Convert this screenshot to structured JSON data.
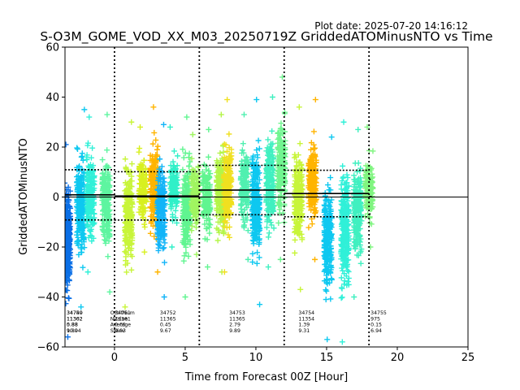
{
  "header": {
    "plot_date": "Plot date: 2025-07-20 14:16:12",
    "title": "S-O3M_GOME_VOD_XX_M03_20250719Z GriddedATOMinusNTO vs Time"
  },
  "chart_data": {
    "type": "scatter",
    "title": "S-O3M_GOME_VOD_XX_M03_20250719Z GriddedATOMinusNTO vs Time",
    "xlabel": "Time from Forecast 00Z [Hour]",
    "ylabel": "GriddedATOMinusNTO",
    "xlim": [
      -3.5,
      25
    ],
    "ylim": [
      -60,
      60
    ],
    "xticks": [
      0,
      5,
      10,
      15,
      20,
      25
    ],
    "yticks": [
      -60,
      -40,
      -20,
      0,
      20,
      40,
      60
    ],
    "grid": false,
    "marker": "+",
    "zero_line": 0,
    "window_boundaries": [
      0,
      6,
      12,
      18
    ],
    "orbit_bands": [
      {
        "x": -3.4,
        "min": -56,
        "max": 21,
        "color": "#0a6fe6",
        "density": 2
      },
      {
        "x": -2.4,
        "min": -44,
        "max": 35,
        "color": "#0ec8f0"
      },
      {
        "x": -1.7,
        "min": -30,
        "max": 32,
        "color": "#30f0d8"
      },
      {
        "x": -0.6,
        "min": -38,
        "max": 33,
        "color": "#5ef5a0"
      },
      {
        "x": 1.0,
        "min": -44,
        "max": 30,
        "color": "#c8f53a"
      },
      {
        "x": 2.0,
        "min": -22,
        "max": 28,
        "color": "#d8f020"
      },
      {
        "x": 2.8,
        "min": -30,
        "max": 36,
        "color": "#ffb400"
      },
      {
        "x": 3.3,
        "min": -40,
        "max": 29,
        "color": "#12b4f8"
      },
      {
        "x": 4.2,
        "min": -20,
        "max": 28,
        "color": "#30f0c8"
      },
      {
        "x": 5.1,
        "min": -40,
        "max": 32,
        "color": "#60f590"
      },
      {
        "x": 5.7,
        "min": -23,
        "max": 25,
        "color": "#a0f560"
      },
      {
        "x": 6.5,
        "min": -28,
        "max": 27,
        "color": "#60f590"
      },
      {
        "x": 7.5,
        "min": -30,
        "max": 33,
        "color": "#b4f548"
      },
      {
        "x": 8.0,
        "min": -30,
        "max": 39,
        "color": "#f0e020"
      },
      {
        "x": 9.2,
        "min": -25,
        "max": 33,
        "color": "#50f0b0"
      },
      {
        "x": 10.0,
        "min": -43,
        "max": 39,
        "color": "#0ec8f0"
      },
      {
        "x": 11.0,
        "min": -28,
        "max": 40,
        "color": "#40f0c0"
      },
      {
        "x": 11.8,
        "min": -25,
        "max": 48,
        "color": "#70f590"
      },
      {
        "x": 13.0,
        "min": -37,
        "max": 36,
        "color": "#c8f53a"
      },
      {
        "x": 14.0,
        "min": -25,
        "max": 39,
        "color": "#ffb400"
      },
      {
        "x": 15.1,
        "min": -57,
        "max": 24,
        "color": "#0ec8f0"
      },
      {
        "x": 16.3,
        "min": -58,
        "max": 30,
        "color": "#30f0d8"
      },
      {
        "x": 17.2,
        "min": -40,
        "max": 27,
        "color": "#40f0c0"
      },
      {
        "x": 18.0,
        "min": -20,
        "max": 28,
        "color": "#80f580"
      }
    ],
    "window_stats": [
      {
        "x_from": -3.5,
        "x_to": 0,
        "mean": 0.88,
        "stdev": 10.04
      },
      {
        "x_from": 0,
        "x_to": 6,
        "mean": 0.45,
        "stdev": 9.67
      },
      {
        "x_from": 6,
        "x_to": 12,
        "mean": 2.79,
        "stdev": 9.89
      },
      {
        "x_from": 12,
        "x_to": 18,
        "mean": 1.39,
        "stdev": 9.31
      },
      {
        "x_from": 18,
        "x_to": 18.2,
        "mean": 0.15,
        "stdev": 6.94
      }
    ],
    "stat_rows": {
      "label_column": [
        "OrbitNum",
        "NValue",
        "Average",
        "Stdev"
      ],
      "groups": [
        {
          "x": -3.5,
          "lines": [
            "34750",
            "11362",
            "5.88",
            "10.04"
          ]
        },
        {
          "x": -3.5,
          "lines": [
            "34749",
            "11302",
            "0.88",
            "9.89"
          ]
        },
        {
          "x": -0.1,
          "lines": [
            "34751",
            "11361",
            "0.65",
            "9.93"
          ]
        },
        {
          "x": 3.1,
          "lines": [
            "34752",
            "11365",
            "0.45",
            "9.67"
          ]
        },
        {
          "x": 8.0,
          "lines": [
            "34753",
            "11365",
            "2.79",
            "9.89"
          ]
        },
        {
          "x": 12.9,
          "lines": [
            "34754",
            "11354",
            "1.39",
            "9.31"
          ]
        },
        {
          "x": 18.0,
          "lines": [
            "34755",
            "975",
            "0.15",
            "6.94"
          ]
        }
      ]
    }
  }
}
